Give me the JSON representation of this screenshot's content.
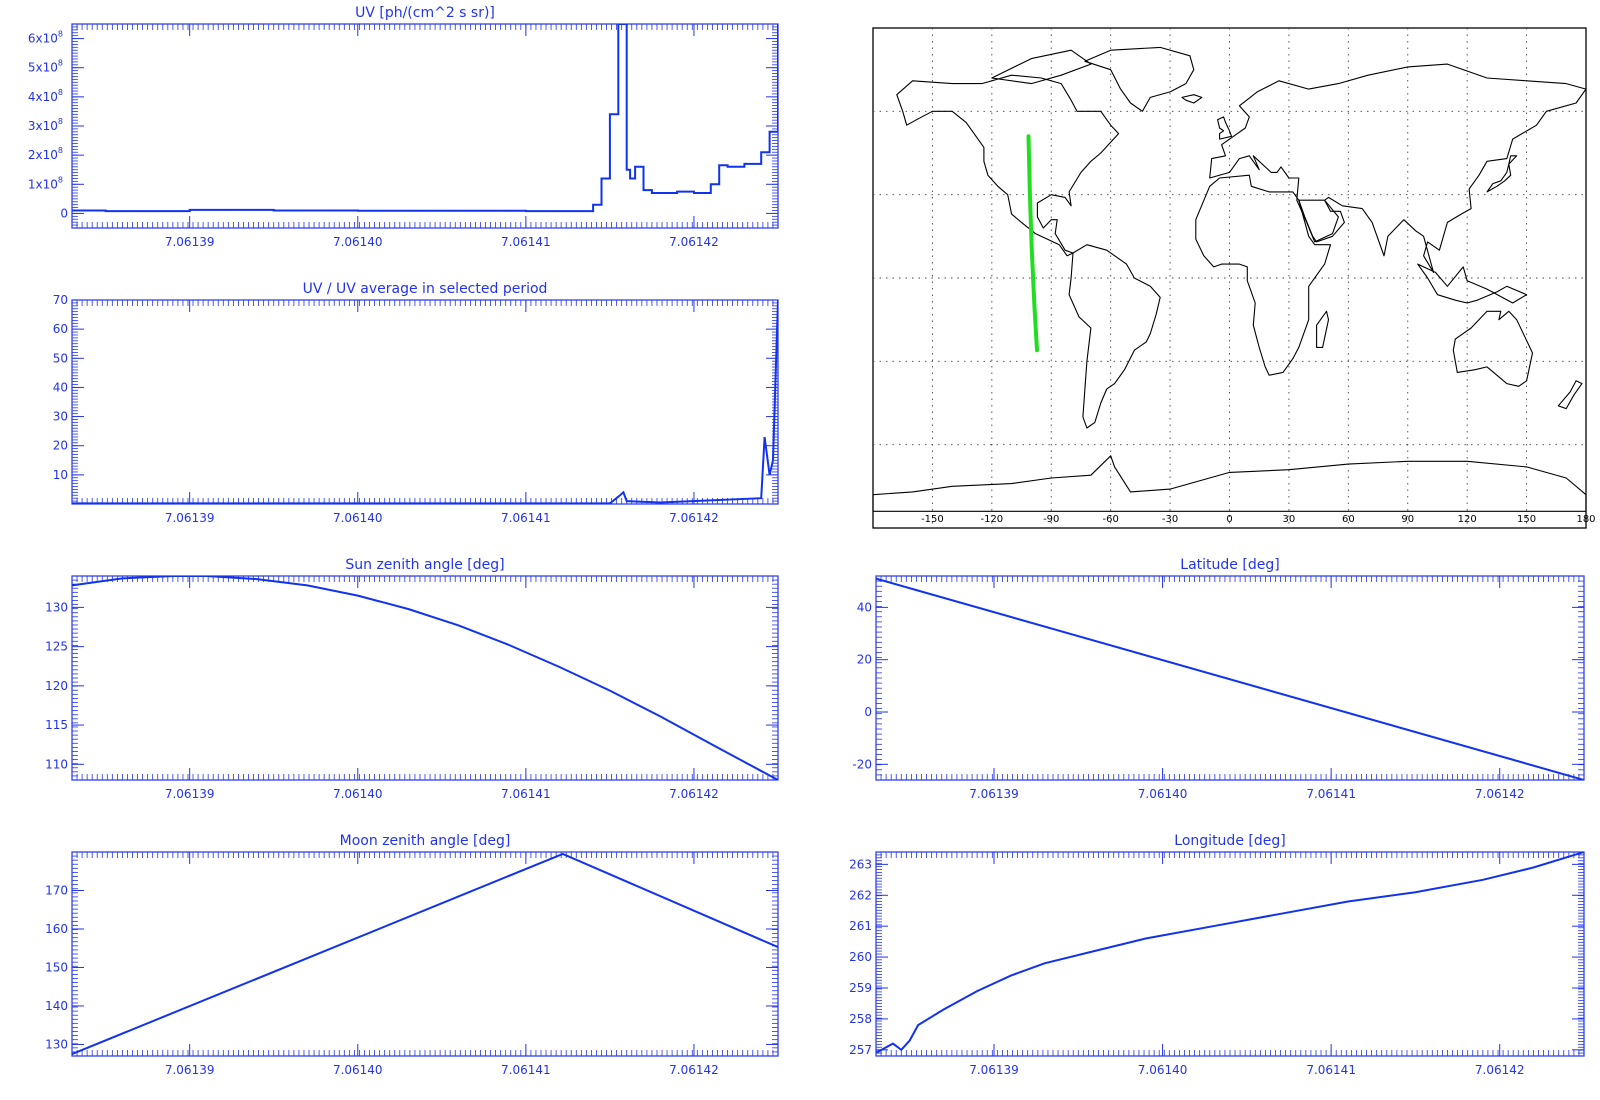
{
  "colors": {
    "axis": "#2233ee",
    "line": "#1133ee",
    "track": "#22dd22",
    "coast": "#000000",
    "grid": "#444444"
  },
  "chart_data": [
    {
      "id": "uv",
      "type": "line",
      "title": "UV [ph/(cm^2 s sr)]",
      "xlim": [
        7.061383,
        7.061425
      ],
      "xticks": [
        7.06139,
        7.0614,
        7.06141,
        7.06142
      ],
      "xtick_labels": [
        "7.06139",
        "7.06140",
        "7.06141",
        "7.06142"
      ],
      "ylim": [
        -50000000,
        650000000
      ],
      "yticks": [
        0,
        100000000,
        200000000,
        300000000,
        400000000,
        500000000,
        600000000
      ],
      "ytick_labels": [
        {
          "text": "0",
          "mant": "",
          "exp": ""
        },
        {
          "text": "",
          "mant": "1x10",
          "exp": "8"
        },
        {
          "text": "",
          "mant": "2x10",
          "exp": "8"
        },
        {
          "text": "",
          "mant": "3x10",
          "exp": "8"
        },
        {
          "text": "",
          "mant": "4x10",
          "exp": "8"
        },
        {
          "text": "",
          "mant": "5x10",
          "exp": "8"
        },
        {
          "text": "",
          "mant": "6x10",
          "exp": "8"
        }
      ],
      "step": true,
      "x": [
        7.061383,
        7.061385,
        7.06139,
        7.061395,
        7.0614,
        7.061405,
        7.06141,
        7.061414,
        7.061414,
        7.0614145,
        7.061415,
        7.0614155,
        7.0614158,
        7.061416,
        7.0614162,
        7.0614165,
        7.061417,
        7.0614175,
        7.061418,
        7.061419,
        7.06142,
        7.061421,
        7.0614215,
        7.061422,
        7.061423,
        7.061424,
        7.0614245,
        7.061425
      ],
      "y": [
        10000000,
        8000000,
        12000000,
        10000000,
        9000000,
        9000000,
        8000000,
        8000000,
        30000000,
        120000000,
        340000000,
        650000000,
        650000000,
        150000000,
        120000000,
        160000000,
        80000000,
        70000000,
        70000000,
        75000000,
        70000000,
        100000000,
        165000000,
        160000000,
        170000000,
        210000000,
        280000000,
        650000000
      ]
    },
    {
      "id": "uv_ratio",
      "type": "line",
      "title": "UV / UV average in selected period",
      "xlim": [
        7.061383,
        7.061425
      ],
      "xticks": [
        7.06139,
        7.0614,
        7.06141,
        7.06142
      ],
      "xtick_labels": [
        "7.06139",
        "7.06140",
        "7.06141",
        "7.06142"
      ],
      "ylim": [
        0,
        70
      ],
      "yticks": [
        10,
        20,
        30,
        40,
        50,
        60,
        70
      ],
      "ytick_labels": [
        "10",
        "20",
        "30",
        "40",
        "50",
        "60",
        "70"
      ],
      "x": [
        7.061383,
        7.0614,
        7.061415,
        7.0614155,
        7.0614158,
        7.061416,
        7.061418,
        7.061424,
        7.0614242,
        7.0614245,
        7.0614247,
        7.061425
      ],
      "y": [
        0.2,
        0.2,
        0.2,
        2.5,
        4,
        1,
        0.5,
        2,
        23,
        10,
        15,
        70
      ]
    },
    {
      "id": "sun",
      "type": "line",
      "title": "Sun zenith angle [deg]",
      "xlim": [
        7.061383,
        7.061425
      ],
      "xticks": [
        7.06139,
        7.0614,
        7.06141,
        7.06142
      ],
      "xtick_labels": [
        "7.06139",
        "7.06140",
        "7.06141",
        "7.06142"
      ],
      "ylim": [
        108,
        134
      ],
      "yticks": [
        110,
        115,
        120,
        125,
        130
      ],
      "ytick_labels": [
        "110",
        "115",
        "120",
        "125",
        "130"
      ],
      "x": [
        7.061383,
        7.061386,
        7.061389,
        7.061391,
        7.061394,
        7.061397,
        7.0614,
        7.061403,
        7.061406,
        7.061409,
        7.061412,
        7.061415,
        7.061418,
        7.061421,
        7.061425
      ],
      "y": [
        132.8,
        133.7,
        134.0,
        134.0,
        133.6,
        132.8,
        131.5,
        129.8,
        127.7,
        125.2,
        122.4,
        119.4,
        116.1,
        112.6,
        108
      ]
    },
    {
      "id": "moon",
      "type": "line",
      "title": "Moon zenith angle [deg]",
      "xlim": [
        7.061383,
        7.061425
      ],
      "xticks": [
        7.06139,
        7.0614,
        7.06141,
        7.06142
      ],
      "xtick_labels": [
        "7.06139",
        "7.06140",
        "7.06141",
        "7.06142"
      ],
      "ylim": [
        127,
        180
      ],
      "yticks": [
        130,
        140,
        150,
        160,
        170
      ],
      "ytick_labels": [
        "130",
        "140",
        "150",
        "160",
        "170"
      ],
      "x": [
        7.061383,
        7.0614122,
        7.061425
      ],
      "y": [
        127.5,
        179.5,
        155.3
      ]
    },
    {
      "id": "lat",
      "type": "line",
      "title": "Latitude [deg]",
      "xlim": [
        7.061383,
        7.061425
      ],
      "xticks": [
        7.06139,
        7.0614,
        7.06141,
        7.06142
      ],
      "xtick_labels": [
        "7.06139",
        "7.06140",
        "7.06141",
        "7.06142"
      ],
      "ylim": [
        -26,
        52
      ],
      "yticks": [
        -20,
        0,
        20,
        40
      ],
      "ytick_labels": [
        "-20",
        "0",
        "20",
        "40"
      ],
      "x": [
        7.061383,
        7.061425
      ],
      "y": [
        51,
        -26
      ]
    },
    {
      "id": "lon",
      "type": "line",
      "title": "Longitude [deg]",
      "xlim": [
        7.061383,
        7.061425
      ],
      "xticks": [
        7.06139,
        7.0614,
        7.06141,
        7.06142
      ],
      "xtick_labels": [
        "7.06139",
        "7.06140",
        "7.06141",
        "7.06142"
      ],
      "ylim": [
        256.8,
        263.4
      ],
      "yticks": [
        257,
        258,
        259,
        260,
        261,
        262,
        263
      ],
      "ytick_labels": [
        "257",
        "258",
        "259",
        "260",
        "261",
        "262",
        "263"
      ],
      "x": [
        7.061383,
        7.061384,
        7.0613845,
        7.061385,
        7.0613855,
        7.061387,
        7.061389,
        7.061391,
        7.061393,
        7.061396,
        7.061399,
        7.061403,
        7.061407,
        7.061411,
        7.061415,
        7.061419,
        7.061422,
        7.061425
      ],
      "y": [
        256.9,
        257.2,
        257.0,
        257.3,
        257.8,
        258.3,
        258.9,
        259.4,
        259.8,
        260.2,
        260.6,
        261.0,
        261.4,
        261.8,
        262.1,
        262.5,
        262.9,
        263.4
      ]
    },
    {
      "id": "map",
      "type": "map",
      "xlim": [
        -180,
        180
      ],
      "ylim": [
        -90,
        90
      ],
      "xticks": [
        -150,
        -120,
        -90,
        -60,
        -30,
        0,
        30,
        60,
        90,
        120,
        150,
        180
      ],
      "xtick_labels": [
        "-150",
        "-120",
        "-90",
        "-60",
        "-30",
        "0",
        "30",
        "60",
        "90",
        "120",
        "150",
        "180"
      ],
      "grid": true,
      "track": {
        "lon": [
          -101.5,
          -100.8,
          -99.8,
          -98.5,
          -97.2
        ],
        "lat": [
          51,
          30,
          10,
          -10,
          -26
        ]
      }
    }
  ]
}
